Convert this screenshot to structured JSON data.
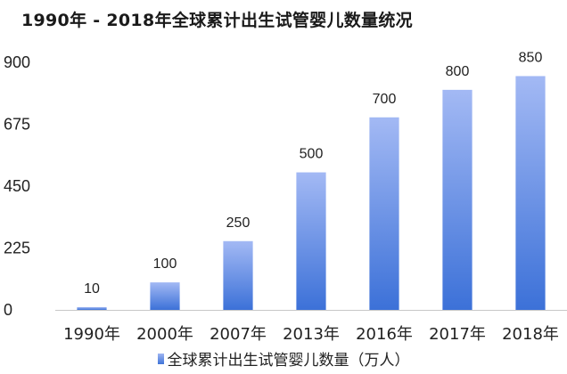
{
  "colors": {
    "bar_top": "#a3b9f4",
    "bar_bottom": "#3c71d8",
    "axis": "#c8c8c8"
  },
  "chart_data": {
    "type": "bar",
    "title": "1990年 - 2018年全球累计出生试管婴儿数量统况",
    "categories": [
      "1990年",
      "2000年",
      "2007年",
      "2013年",
      "2016年",
      "2017年",
      "2018年"
    ],
    "series": [
      {
        "name": "全球累计出生试管婴儿数量（万人）",
        "values": [
          10,
          100,
          250,
          500,
          700,
          800,
          850
        ]
      }
    ],
    "ylim": [
      0,
      900
    ],
    "yticks": [
      0,
      225,
      450,
      675,
      900
    ],
    "xlabel": "",
    "ylabel": "",
    "grid": false,
    "legend_position": "bottom",
    "data_labels": true
  }
}
